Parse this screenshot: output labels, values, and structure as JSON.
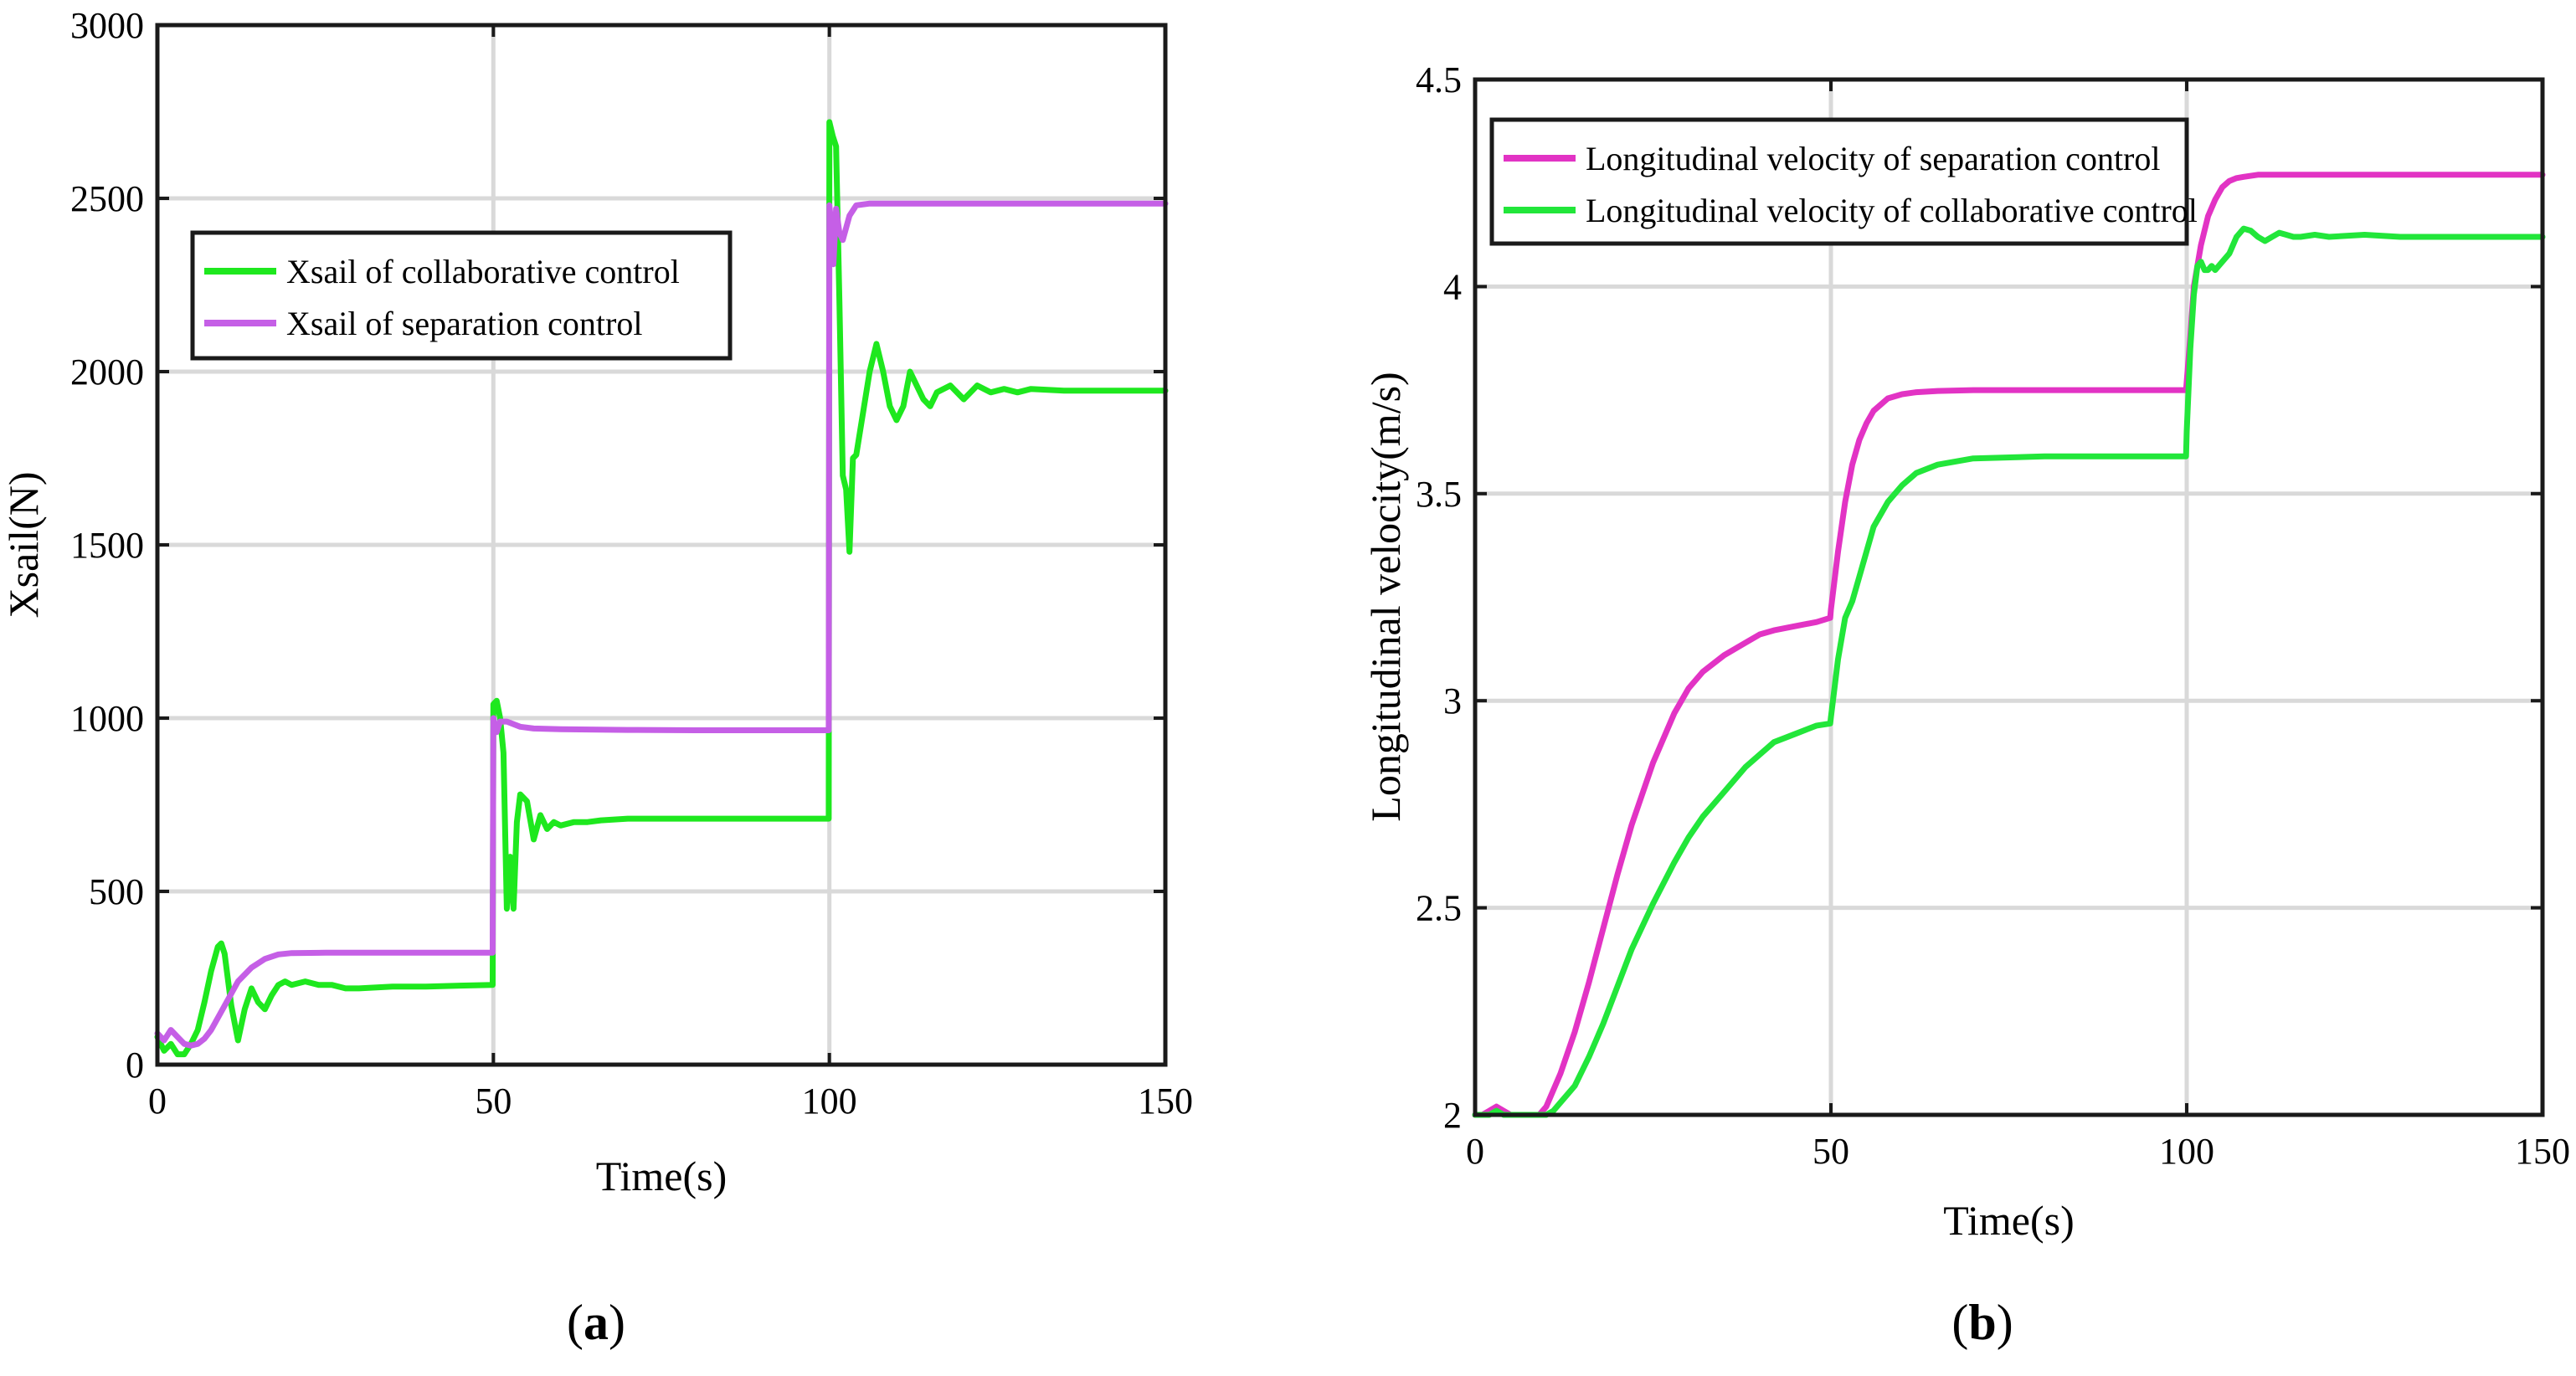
{
  "chart_data": [
    {
      "panel": "a",
      "type": "line",
      "caption": "(a)",
      "caption_letter": "a",
      "xlabel": "Time(s)",
      "ylabel": "Xsail(N)",
      "xlim": [
        0,
        150
      ],
      "ylim": [
        0,
        3000
      ],
      "xticks": [
        0,
        50,
        100,
        150
      ],
      "yticks": [
        0,
        500,
        1000,
        1500,
        2000,
        2500,
        3000
      ],
      "grid": true,
      "legend_position": "upper-left",
      "series": [
        {
          "name": "Xsail of collaborative  control",
          "color": "#1ee81e",
          "x": [
            0,
            1,
            2,
            3,
            4,
            5,
            6,
            7,
            8,
            9,
            9.5,
            10,
            11,
            12,
            13,
            14,
            15,
            16,
            17,
            18,
            19,
            20,
            22,
            24,
            26,
            28,
            30,
            35,
            40,
            45,
            49.9,
            50,
            50.5,
            51,
            51.5,
            52,
            52.5,
            53,
            53.5,
            54,
            55,
            56,
            57,
            58,
            59,
            60,
            62,
            64,
            66,
            70,
            80,
            90,
            99.9,
            100,
            100.5,
            101,
            101.5,
            102,
            102.5,
            103,
            103.5,
            104,
            105,
            106,
            107,
            108,
            109,
            110,
            111,
            112,
            113,
            114,
            115,
            116,
            118,
            120,
            122,
            124,
            126,
            128,
            130,
            135,
            140,
            145,
            150
          ],
          "values": [
            80,
            40,
            60,
            30,
            30,
            60,
            100,
            180,
            270,
            340,
            350,
            320,
            170,
            70,
            160,
            220,
            180,
            160,
            200,
            230,
            240,
            230,
            240,
            230,
            230,
            220,
            220,
            225,
            225,
            228,
            230,
            1040,
            1050,
            1000,
            900,
            450,
            600,
            450,
            700,
            780,
            760,
            650,
            720,
            680,
            700,
            690,
            700,
            700,
            705,
            710,
            710,
            710,
            710,
            2720,
            2680,
            2650,
            2200,
            1700,
            1660,
            1480,
            1750,
            1760,
            1880,
            2000,
            2080,
            2000,
            1900,
            1860,
            1900,
            2000,
            1960,
            1920,
            1900,
            1940,
            1960,
            1920,
            1960,
            1940,
            1950,
            1940,
            1950,
            1945,
            1945,
            1945,
            1945
          ]
        },
        {
          "name": "Xsail of separation control",
          "color": "#c55fe6",
          "x": [
            0,
            1,
            2,
            3,
            4,
            5,
            6,
            7,
            8,
            10,
            12,
            14,
            16,
            18,
            20,
            25,
            30,
            40,
            49.9,
            50,
            50.5,
            51,
            52,
            54,
            56,
            60,
            70,
            80,
            90,
            99.9,
            100,
            100.3,
            100.6,
            101,
            101.5,
            102,
            103,
            104,
            106,
            110,
            120,
            150
          ],
          "values": [
            90,
            70,
            100,
            80,
            60,
            55,
            60,
            75,
            100,
            170,
            240,
            280,
            305,
            318,
            322,
            323,
            323,
            323,
            323,
            1000,
            960,
            990,
            990,
            975,
            970,
            968,
            966,
            965,
            965,
            965,
            2480,
            2420,
            2310,
            2470,
            2400,
            2380,
            2450,
            2480,
            2485,
            2485,
            2485,
            2485
          ]
        }
      ]
    },
    {
      "panel": "b",
      "type": "line",
      "caption": "(b)",
      "caption_letter": "b",
      "xlabel": "Time(s)",
      "ylabel": "Longitudinal velocity(m/s)",
      "xlim": [
        0,
        150
      ],
      "ylim": [
        2,
        4.5
      ],
      "xticks": [
        0,
        50,
        100,
        150
      ],
      "yticks": [
        2,
        2.5,
        3,
        3.5,
        4,
        4.5
      ],
      "ytick_labels": [
        "2",
        "2.5",
        "3",
        "3.5",
        "4",
        "4.5"
      ],
      "grid": true,
      "legend_position": "upper-left",
      "series": [
        {
          "name": "Longitudinal velocity of separation control",
          "color": "#e233c4",
          "x": [
            0,
            1,
            2,
            3,
            4,
            5,
            6,
            7,
            8,
            9,
            10,
            12,
            14,
            16,
            18,
            20,
            22,
            25,
            28,
            30,
            32,
            35,
            38,
            40,
            42,
            45,
            48,
            49.9,
            50,
            51,
            52,
            53,
            54,
            55,
            56,
            58,
            60,
            62,
            65,
            70,
            80,
            90,
            99.9,
            100,
            100.5,
            101,
            102,
            103,
            104,
            105,
            106,
            107,
            108,
            110,
            120,
            150
          ],
          "values": [
            2.0,
            2.0,
            2.01,
            2.02,
            2.01,
            2.0,
            2.0,
            2.0,
            2.0,
            2.0,
            2.02,
            2.1,
            2.2,
            2.32,
            2.45,
            2.58,
            2.7,
            2.85,
            2.97,
            3.03,
            3.07,
            3.11,
            3.14,
            3.16,
            3.17,
            3.18,
            3.19,
            3.2,
            3.22,
            3.36,
            3.48,
            3.57,
            3.63,
            3.67,
            3.7,
            3.73,
            3.74,
            3.745,
            3.748,
            3.75,
            3.75,
            3.75,
            3.75,
            3.77,
            3.88,
            4.0,
            4.1,
            4.17,
            4.21,
            4.24,
            4.255,
            4.262,
            4.265,
            4.27,
            4.27,
            4.27
          ]
        },
        {
          "name": "Longitudinal velocity of collaborative control",
          "color": "#22e63a",
          "x": [
            0,
            1,
            2,
            3,
            4,
            5,
            6,
            7,
            8,
            9,
            10,
            11,
            12,
            13,
            14,
            16,
            18,
            20,
            22,
            25,
            28,
            30,
            32,
            35,
            38,
            40,
            42,
            45,
            48,
            49.9,
            50,
            51,
            52,
            53,
            54,
            55,
            56,
            58,
            60,
            62,
            65,
            70,
            80,
            90,
            99.9,
            100,
            100.5,
            101,
            101.5,
            102,
            102.5,
            103,
            103.5,
            104,
            105,
            106,
            107,
            108,
            109,
            110,
            111,
            112,
            113,
            114,
            115,
            116,
            118,
            120,
            125,
            130,
            140,
            150
          ],
          "values": [
            2.0,
            2.0,
            2.0,
            2.01,
            2.0,
            2.0,
            2.0,
            2.0,
            2.0,
            2.0,
            2.0,
            2.01,
            2.03,
            2.05,
            2.07,
            2.14,
            2.22,
            2.31,
            2.4,
            2.51,
            2.61,
            2.67,
            2.72,
            2.78,
            2.84,
            2.87,
            2.9,
            2.92,
            2.94,
            2.945,
            2.96,
            3.1,
            3.2,
            3.24,
            3.3,
            3.36,
            3.42,
            3.48,
            3.52,
            3.55,
            3.57,
            3.585,
            3.59,
            3.59,
            3.59,
            3.65,
            3.85,
            3.98,
            4.05,
            4.06,
            4.04,
            4.04,
            4.05,
            4.04,
            4.06,
            4.08,
            4.12,
            4.14,
            4.135,
            4.12,
            4.11,
            4.12,
            4.13,
            4.125,
            4.12,
            4.12,
            4.125,
            4.12,
            4.125,
            4.12,
            4.12,
            4.12
          ]
        }
      ]
    }
  ]
}
